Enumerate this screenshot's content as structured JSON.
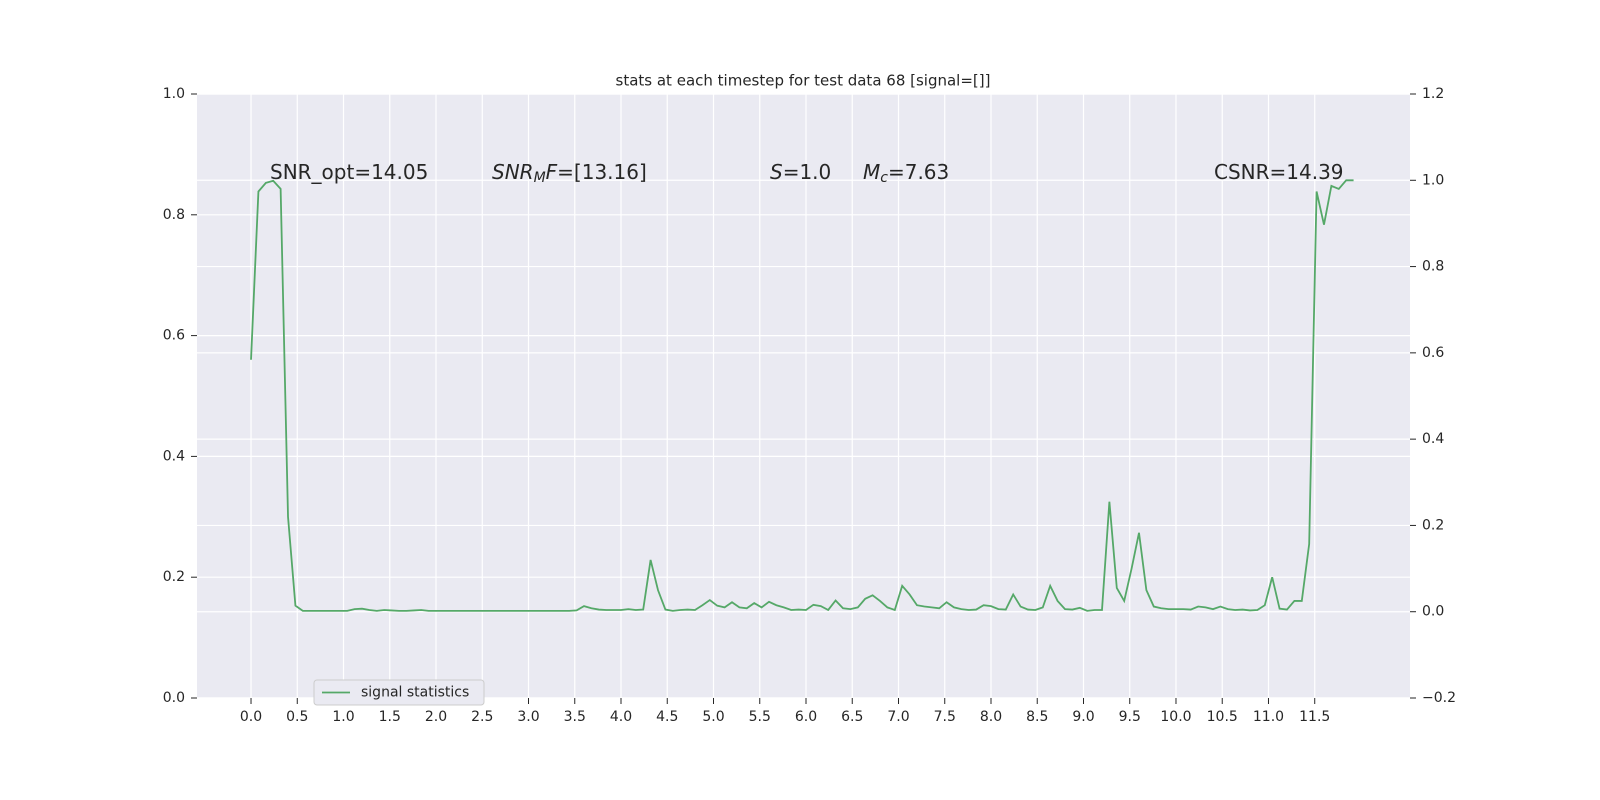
{
  "chart_data": {
    "type": "line",
    "title": "stats at each timestep for test data 68 [signal=[]]",
    "xlim": [
      -0.584,
      12.53
    ],
    "xticks": [
      {
        "value": 0,
        "label": "0.0"
      },
      0.5,
      {
        "value": 1,
        "label": "1.0"
      },
      1.5,
      {
        "value": 2,
        "label": "2.0"
      },
      2.5,
      {
        "value": 3,
        "label": "3.0"
      },
      3.5,
      {
        "value": 4,
        "label": "4.0"
      },
      4.5,
      {
        "value": 5,
        "label": "5.0"
      },
      5.5,
      {
        "value": 6,
        "label": "6.0"
      },
      6.5,
      {
        "value": 7,
        "label": "7.0"
      },
      7.5,
      {
        "value": 8,
        "label": "8.0"
      },
      8.5,
      {
        "value": 9,
        "label": "9.0"
      },
      9.5,
      {
        "value": 10,
        "label": "10.0"
      },
      10.5,
      {
        "value": 11,
        "label": "11.0"
      },
      11.5
    ],
    "ylim": [
      0,
      1
    ],
    "yticks": [
      {
        "value": 0,
        "label": "0.0"
      },
      0.2,
      0.4,
      0.6,
      0.8,
      {
        "value": 1,
        "label": "1.0"
      }
    ],
    "y2lim": [
      -0.2,
      1.2
    ],
    "y2ticks": [
      {
        "value": -0.2,
        "label": "−0.2"
      },
      {
        "value": 0,
        "label": "0.0"
      },
      0.2,
      0.4,
      0.6,
      0.8,
      {
        "value": 1,
        "label": "1.0"
      },
      1.2
    ],
    "grid": true,
    "legend": "lower left",
    "annotations": [
      [
        {
          "text": "SNR_opt=14.05"
        }
      ],
      [
        {
          "text": "SNR",
          "italic": true
        },
        {
          "text": "M",
          "italic": true,
          "sub": true
        },
        {
          "text": "F",
          "italic": true
        },
        {
          "text": "=[13.16]"
        }
      ],
      [
        {
          "text": "S",
          "italic": true
        },
        {
          "text": "=1.0"
        }
      ],
      [
        {
          "text": "M",
          "italic": true
        },
        {
          "text": "c",
          "italic": true,
          "sub": true
        },
        {
          "text": "=7.63"
        }
      ],
      [
        {
          "text": "CSNR=14.39"
        }
      ]
    ],
    "x": [
      0,
      0.08,
      0.16,
      0.24,
      0.32,
      0.4,
      0.48,
      0.56,
      0.64,
      0.72,
      0.8,
      0.88,
      0.96,
      1.04,
      1.12,
      1.2,
      1.28,
      1.36,
      1.44,
      1.52,
      1.6,
      1.68,
      1.76,
      1.84,
      1.92,
      2,
      2.08,
      2.16,
      2.24,
      2.32,
      2.4,
      2.48,
      2.56,
      2.64,
      2.72,
      2.8,
      2.88,
      2.96,
      3.04,
      3.12,
      3.2,
      3.28,
      3.36,
      3.44,
      3.52,
      3.6,
      3.68,
      3.76,
      3.84,
      3.92,
      4,
      4.08,
      4.16,
      4.24,
      4.32,
      4.4,
      4.48,
      4.56,
      4.64,
      4.72,
      4.8,
      4.88,
      4.96,
      5.04,
      5.12,
      5.2,
      5.28,
      5.36,
      5.44,
      5.52,
      5.6,
      5.68,
      5.76,
      5.84,
      5.92,
      6,
      6.08,
      6.16,
      6.24,
      6.32,
      6.4,
      6.48,
      6.56,
      6.64,
      6.72,
      6.8,
      6.88,
      6.96,
      7.04,
      7.12,
      7.2,
      7.28,
      7.36,
      7.44,
      7.52,
      7.6,
      7.68,
      7.76,
      7.84,
      7.92,
      8,
      8.08,
      8.16,
      8.24,
      8.32,
      8.4,
      8.48,
      8.56,
      8.64,
      8.72,
      8.8,
      8.88,
      8.96,
      9.04,
      9.12,
      9.2,
      9.28,
      9.36,
      9.44,
      9.52,
      9.6,
      9.68,
      9.76,
      9.84,
      9.92,
      10,
      10.08,
      10.16,
      10.24,
      10.32,
      10.4,
      10.48,
      10.56,
      10.64,
      10.72,
      10.8,
      10.88,
      10.96,
      11.04,
      11.12,
      11.2,
      11.28,
      11.36,
      11.44,
      11.52,
      11.6,
      11.68,
      11.76,
      11.84,
      11.92
    ],
    "series": [
      {
        "name": "signal statistics",
        "color": "#55a868",
        "axis": "y2",
        "values": [
          0.584,
          0.974,
          0.994,
          0.999,
          0.98,
          0.22,
          0.014,
          0.002,
          0.002,
          0.002,
          0.002,
          0.002,
          0.002,
          0.002,
          0.006,
          0.007,
          0.004,
          0.002,
          0.004,
          0.003,
          0.002,
          0.002,
          0.003,
          0.004,
          0.002,
          0.002,
          0.002,
          0.002,
          0.002,
          0.002,
          0.002,
          0.002,
          0.002,
          0.002,
          0.002,
          0.002,
          0.002,
          0.002,
          0.002,
          0.002,
          0.002,
          0.002,
          0.002,
          0.002,
          0.003,
          0.013,
          0.008,
          0.005,
          0.004,
          0.004,
          0.004,
          0.006,
          0.004,
          0.005,
          0.12,
          0.05,
          0.005,
          0.002,
          0.004,
          0.005,
          0.004,
          0.015,
          0.027,
          0.014,
          0.01,
          0.022,
          0.01,
          0.008,
          0.02,
          0.01,
          0.023,
          0.015,
          0.01,
          0.004,
          0.005,
          0.004,
          0.016,
          0.013,
          0.004,
          0.026,
          0.008,
          0.006,
          0.01,
          0.03,
          0.038,
          0.025,
          0.01,
          0.004,
          0.06,
          0.04,
          0.015,
          0.012,
          0.01,
          0.008,
          0.022,
          0.01,
          0.006,
          0.004,
          0.005,
          0.015,
          0.013,
          0.006,
          0.005,
          0.04,
          0.012,
          0.005,
          0.004,
          0.01,
          0.06,
          0.025,
          0.006,
          0.005,
          0.009,
          0.002,
          0.004,
          0.004,
          0.255,
          0.055,
          0.025,
          0.1,
          0.183,
          0.05,
          0.012,
          0.008,
          0.006,
          0.006,
          0.006,
          0.005,
          0.012,
          0.01,
          0.006,
          0.012,
          0.006,
          0.004,
          0.005,
          0.003,
          0.004,
          0.015,
          0.08,
          0.007,
          0.005,
          0.025,
          0.025,
          0.157,
          0.974,
          0.897,
          0.987,
          0.98,
          1.0,
          1.0
        ]
      }
    ]
  }
}
